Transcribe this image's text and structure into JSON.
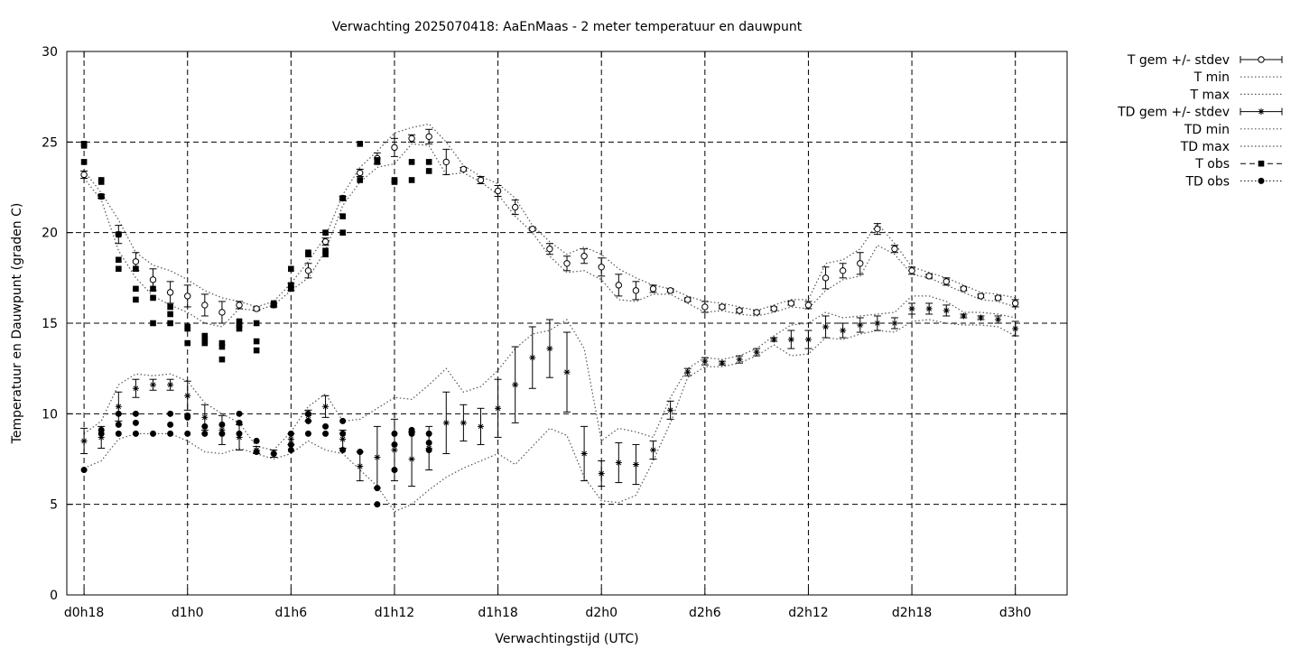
{
  "chart_data": {
    "type": "line",
    "title": "Verwachting 2025070418: AaEnMaas - 2 meter temperatuur en dauwpunt",
    "xlabel": "Verwachtingstijd (UTC)",
    "ylabel": "Temperatuur en Dauwpunt (graden C)",
    "xlim": [
      -1,
      57
    ],
    "ylim": [
      0,
      30
    ],
    "yticks": [
      0,
      5,
      10,
      15,
      20,
      25,
      30
    ],
    "xticks": [
      {
        "x": 0,
        "label": "d0h18"
      },
      {
        "x": 6,
        "label": "d1h0"
      },
      {
        "x": 12,
        "label": "d1h6"
      },
      {
        "x": 18,
        "label": "d1h12"
      },
      {
        "x": 24,
        "label": "d1h18"
      },
      {
        "x": 30,
        "label": "d2h0"
      },
      {
        "x": 36,
        "label": "d2h6"
      },
      {
        "x": 42,
        "label": "d2h12"
      },
      {
        "x": 48,
        "label": "d2h18"
      },
      {
        "x": 54,
        "label": "d3h0"
      }
    ],
    "grid": true,
    "legend_position": "outside-right",
    "series": [
      {
        "name": "T gem +/- stdev",
        "style": "errorbars-open-circle",
        "x": [
          0,
          1,
          2,
          3,
          4,
          5,
          6,
          7,
          8,
          9,
          10,
          11,
          12,
          13,
          14,
          15,
          16,
          17,
          18,
          19,
          20,
          21,
          22,
          23,
          24,
          25,
          26,
          27,
          28,
          29,
          30,
          31,
          32,
          33,
          34,
          35,
          36,
          37,
          38,
          39,
          40,
          41,
          42,
          43,
          44,
          45,
          46,
          47,
          48,
          49,
          50,
          51,
          52,
          53,
          54
        ],
        "y": [
          23.2,
          22.0,
          19.9,
          18.4,
          17.4,
          16.7,
          16.5,
          16.0,
          15.6,
          16.0,
          15.8,
          16.0,
          17.0,
          17.9,
          19.5,
          21.9,
          23.3,
          24.1,
          24.7,
          25.2,
          25.3,
          23.9,
          23.5,
          22.9,
          22.3,
          21.4,
          20.2,
          19.1,
          18.3,
          18.7,
          18.1,
          17.1,
          16.8,
          16.9,
          16.8,
          16.3,
          15.9,
          15.9,
          15.7,
          15.6,
          15.8,
          16.1,
          16.0,
          17.5,
          17.9,
          18.3,
          20.2,
          19.1,
          17.9,
          17.6,
          17.3,
          16.9,
          16.5,
          16.4,
          16.1
        ],
        "err": [
          0.2,
          0.1,
          0.5,
          0.5,
          0.6,
          0.6,
          0.6,
          0.6,
          0.6,
          0.2,
          0.1,
          0.1,
          0.2,
          0.4,
          0.2,
          0.1,
          0.2,
          0.3,
          0.5,
          0.2,
          0.4,
          0.7,
          0.1,
          0.2,
          0.3,
          0.4,
          0.1,
          0.3,
          0.4,
          0.4,
          0.5,
          0.6,
          0.5,
          0.2,
          0.1,
          0.1,
          0.3,
          0.1,
          0.1,
          0.1,
          0.1,
          0.1,
          0.2,
          0.6,
          0.4,
          0.6,
          0.3,
          0.2,
          0.2,
          0.1,
          0.2,
          0.1,
          0.1,
          0.1,
          0.2
        ]
      },
      {
        "name": "T min",
        "style": "dotted",
        "x": [
          0,
          1,
          2,
          3,
          4,
          5,
          6,
          7,
          8,
          9,
          10,
          11,
          12,
          13,
          14,
          15,
          16,
          17,
          18,
          19,
          20,
          21,
          22,
          23,
          24,
          25,
          26,
          27,
          28,
          29,
          30,
          31,
          32,
          33,
          34,
          35,
          36,
          37,
          38,
          39,
          40,
          41,
          42,
          43,
          44,
          45,
          46,
          47,
          48,
          49,
          50,
          51,
          52,
          53,
          54
        ],
        "y": [
          23.0,
          21.8,
          19.0,
          17.5,
          16.5,
          16.0,
          15.6,
          15.0,
          14.8,
          15.8,
          15.7,
          16.0,
          16.8,
          17.5,
          19.0,
          21.5,
          22.8,
          23.6,
          23.8,
          24.9,
          24.8,
          23.2,
          23.3,
          22.8,
          22.1,
          20.9,
          20.0,
          18.7,
          17.8,
          17.9,
          17.4,
          16.3,
          16.2,
          16.6,
          16.6,
          16.1,
          15.6,
          15.7,
          15.5,
          15.4,
          15.6,
          15.9,
          15.8,
          16.8,
          17.4,
          17.6,
          19.3,
          18.8,
          17.7,
          17.5,
          17.1,
          16.7,
          16.3,
          16.2,
          15.9
        ]
      },
      {
        "name": "T max",
        "style": "dotted",
        "x": [
          0,
          1,
          2,
          3,
          4,
          5,
          6,
          7,
          8,
          9,
          10,
          11,
          12,
          13,
          14,
          15,
          16,
          17,
          18,
          19,
          20,
          21,
          22,
          23,
          24,
          25,
          26,
          27,
          28,
          29,
          30,
          31,
          32,
          33,
          34,
          35,
          36,
          37,
          38,
          39,
          40,
          41,
          42,
          43,
          44,
          45,
          46,
          47,
          48,
          49,
          50,
          51,
          52,
          53,
          54
        ],
        "y": [
          23.4,
          22.2,
          20.7,
          18.9,
          18.2,
          17.9,
          17.4,
          16.8,
          16.4,
          16.2,
          15.9,
          16.2,
          17.2,
          18.4,
          19.8,
          22.1,
          23.6,
          24.5,
          25.5,
          25.8,
          26.0,
          25.0,
          23.7,
          23.1,
          22.7,
          21.9,
          20.4,
          19.5,
          18.8,
          19.2,
          18.8,
          18.0,
          17.5,
          17.1,
          16.9,
          16.5,
          16.2,
          16.1,
          15.9,
          15.7,
          16.0,
          16.3,
          16.3,
          18.3,
          18.5,
          19.1,
          20.5,
          19.4,
          18.1,
          17.8,
          17.5,
          17.1,
          16.7,
          16.6,
          16.4
        ]
      },
      {
        "name": "TD gem +/- stdev",
        "style": "errorbars-star",
        "x": [
          0,
          1,
          2,
          3,
          4,
          5,
          6,
          7,
          8,
          9,
          10,
          11,
          12,
          13,
          14,
          15,
          16,
          17,
          18,
          19,
          20,
          21,
          22,
          23,
          24,
          25,
          26,
          27,
          28,
          29,
          30,
          31,
          32,
          33,
          34,
          35,
          36,
          37,
          38,
          39,
          40,
          41,
          42,
          43,
          44,
          45,
          46,
          47,
          48,
          49,
          50,
          51,
          52,
          53,
          54
        ],
        "y": [
          8.5,
          8.7,
          10.4,
          11.4,
          11.6,
          11.6,
          11.0,
          9.8,
          9.1,
          8.7,
          8.0,
          7.8,
          8.6,
          9.9,
          10.4,
          8.6,
          7.1,
          7.6,
          8.0,
          7.5,
          8.1,
          9.5,
          9.5,
          9.3,
          10.3,
          11.6,
          13.1,
          13.6,
          12.3,
          7.8,
          6.7,
          7.3,
          7.2,
          8.0,
          10.2,
          12.3,
          12.9,
          12.8,
          13.0,
          13.4,
          14.1,
          14.1,
          14.1,
          14.8,
          14.6,
          14.9,
          15.0,
          15.0,
          15.8,
          15.8,
          15.7,
          15.4,
          15.3,
          15.2,
          14.7
        ],
        "err": [
          0.7,
          0.6,
          0.8,
          0.5,
          0.3,
          0.3,
          0.8,
          0.7,
          0.8,
          0.7,
          0.2,
          0.2,
          0.3,
          0.3,
          0.6,
          0.5,
          0.8,
          1.7,
          1.7,
          1.5,
          1.2,
          1.7,
          1.0,
          1.0,
          1.6,
          2.1,
          1.7,
          1.6,
          2.2,
          1.5,
          0.7,
          1.1,
          1.1,
          0.5,
          0.5,
          0.2,
          0.2,
          0.1,
          0.2,
          0.2,
          0.1,
          0.5,
          0.5,
          0.6,
          0.4,
          0.4,
          0.4,
          0.3,
          0.3,
          0.3,
          0.3,
          0.1,
          0.1,
          0.2,
          0.4
        ]
      },
      {
        "name": "TD min",
        "style": "dotted",
        "x": [
          0,
          1,
          2,
          3,
          4,
          5,
          6,
          7,
          8,
          9,
          10,
          11,
          12,
          13,
          14,
          15,
          16,
          17,
          18,
          19,
          20,
          21,
          22,
          23,
          24,
          25,
          26,
          27,
          28,
          29,
          30,
          31,
          32,
          33,
          34,
          35,
          36,
          37,
          38,
          39,
          40,
          41,
          42,
          43,
          44,
          45,
          46,
          47,
          48,
          49,
          50,
          51,
          52,
          53,
          54
        ],
        "y": [
          7.0,
          7.4,
          8.6,
          8.9,
          8.9,
          8.9,
          8.5,
          7.9,
          7.8,
          8.1,
          7.8,
          7.5,
          7.8,
          8.5,
          8.0,
          7.8,
          6.9,
          6.0,
          4.6,
          5.0,
          5.8,
          6.5,
          7.0,
          7.4,
          7.8,
          7.2,
          8.2,
          9.2,
          8.8,
          6.5,
          5.2,
          5.1,
          5.5,
          7.4,
          9.5,
          12.0,
          12.6,
          12.6,
          12.8,
          13.2,
          13.8,
          13.2,
          13.3,
          14.2,
          14.1,
          14.4,
          14.6,
          14.5,
          15.1,
          15.2,
          15.0,
          14.9,
          14.9,
          14.8,
          14.3
        ]
      },
      {
        "name": "TD max",
        "style": "dotted",
        "x": [
          0,
          1,
          2,
          3,
          4,
          5,
          6,
          7,
          8,
          9,
          10,
          11,
          12,
          13,
          14,
          15,
          16,
          17,
          18,
          19,
          20,
          21,
          22,
          23,
          24,
          25,
          26,
          27,
          28,
          29,
          30,
          31,
          32,
          33,
          34,
          35,
          36,
          37,
          38,
          39,
          40,
          41,
          42,
          43,
          44,
          45,
          46,
          47,
          48,
          49,
          50,
          51,
          52,
          53,
          54
        ],
        "y": [
          8.9,
          9.6,
          11.6,
          12.2,
          12.1,
          12.2,
          11.8,
          10.6,
          10.0,
          9.5,
          8.2,
          8.0,
          9.0,
          10.4,
          11.1,
          9.6,
          9.7,
          10.3,
          10.9,
          10.8,
          11.6,
          12.5,
          11.2,
          11.5,
          12.4,
          13.6,
          14.4,
          14.6,
          15.2,
          13.6,
          8.5,
          9.2,
          9.0,
          8.7,
          10.9,
          12.5,
          13.1,
          13.0,
          13.2,
          13.6,
          14.3,
          14.9,
          15.0,
          15.6,
          15.3,
          15.4,
          15.5,
          15.6,
          16.5,
          16.5,
          16.2,
          15.6,
          15.6,
          15.5,
          15.3
        ]
      },
      {
        "name": "T obs",
        "style": "filled-square",
        "points": [
          [
            0,
            24.8
          ],
          [
            0,
            23.9
          ],
          [
            0,
            24.9
          ],
          [
            1,
            22.8
          ],
          [
            1,
            22.0
          ],
          [
            1,
            22.9
          ],
          [
            2,
            19.9
          ],
          [
            2,
            18.5
          ],
          [
            2,
            18.0
          ],
          [
            3,
            18.0
          ],
          [
            3,
            16.9
          ],
          [
            3,
            16.3
          ],
          [
            4,
            16.9
          ],
          [
            4,
            16.4
          ],
          [
            4,
            15.0
          ],
          [
            5,
            15.9
          ],
          [
            5,
            15.5
          ],
          [
            5,
            15.0
          ],
          [
            6,
            14.7
          ],
          [
            6,
            13.9
          ],
          [
            6,
            14.8
          ],
          [
            7,
            14.3
          ],
          [
            7,
            14.1
          ],
          [
            7,
            13.9
          ],
          [
            8,
            13.9
          ],
          [
            8,
            13.7
          ],
          [
            8,
            13.0
          ],
          [
            9,
            14.9
          ],
          [
            9,
            14.7
          ],
          [
            9,
            15.1
          ],
          [
            10,
            15.0
          ],
          [
            10,
            14.0
          ],
          [
            10,
            13.5
          ],
          [
            11,
            16.0
          ],
          [
            11,
            16.1
          ],
          [
            12,
            18.0
          ],
          [
            12,
            17.1
          ],
          [
            12,
            16.9
          ],
          [
            13,
            18.9
          ],
          [
            13,
            18.8
          ],
          [
            14,
            20.0
          ],
          [
            14,
            18.8
          ],
          [
            14,
            19.0
          ],
          [
            15,
            21.9
          ],
          [
            15,
            20.9
          ],
          [
            15,
            20.0
          ],
          [
            16,
            24.9
          ],
          [
            16,
            22.9
          ],
          [
            17,
            24.0
          ],
          [
            17,
            23.9
          ],
          [
            18,
            22.9
          ],
          [
            18,
            22.8
          ],
          [
            19,
            23.9
          ],
          [
            19,
            22.9
          ],
          [
            20,
            23.9
          ],
          [
            20,
            23.4
          ]
        ]
      },
      {
        "name": "TD obs",
        "style": "filled-circle",
        "points": [
          [
            0,
            6.9
          ],
          [
            1,
            8.9
          ],
          [
            1,
            9.1
          ],
          [
            2,
            10.0
          ],
          [
            2,
            9.4
          ],
          [
            2,
            8.9
          ],
          [
            3,
            10.0
          ],
          [
            3,
            9.5
          ],
          [
            3,
            8.9
          ],
          [
            4,
            8.9
          ],
          [
            5,
            10.0
          ],
          [
            5,
            9.4
          ],
          [
            5,
            8.9
          ],
          [
            6,
            9.9
          ],
          [
            6,
            9.8
          ],
          [
            6,
            8.9
          ],
          [
            7,
            9.3
          ],
          [
            7,
            8.9
          ],
          [
            8,
            9.4
          ],
          [
            8,
            8.9
          ],
          [
            9,
            10.0
          ],
          [
            9,
            9.5
          ],
          [
            9,
            8.9
          ],
          [
            10,
            8.5
          ],
          [
            10,
            7.9
          ],
          [
            11,
            7.8
          ],
          [
            12,
            8.9
          ],
          [
            12,
            8.3
          ],
          [
            12,
            8.0
          ],
          [
            13,
            10.0
          ],
          [
            13,
            9.6
          ],
          [
            13,
            8.9
          ],
          [
            14,
            9.3
          ],
          [
            14,
            8.9
          ],
          [
            15,
            9.6
          ],
          [
            15,
            8.9
          ],
          [
            15,
            8.0
          ],
          [
            16,
            7.9
          ],
          [
            17,
            5.9
          ],
          [
            17,
            5.0
          ],
          [
            18,
            8.9
          ],
          [
            18,
            8.3
          ],
          [
            18,
            6.9
          ],
          [
            19,
            9.1
          ],
          [
            19,
            8.9
          ],
          [
            20,
            8.9
          ],
          [
            20,
            8.4
          ],
          [
            20,
            8.0
          ]
        ]
      }
    ]
  }
}
